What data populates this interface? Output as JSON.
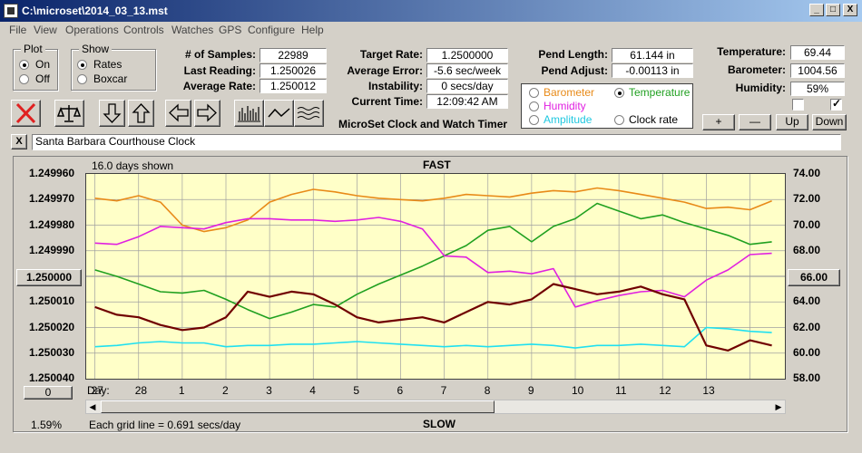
{
  "window": {
    "title": "C:\\microset\\2014_03_13.mst",
    "min_label": "_",
    "max_label": "□",
    "close_label": "X"
  },
  "menu": [
    "File",
    "View",
    "Operations",
    "Controls",
    "Watches",
    "GPS",
    "Configure",
    "Help"
  ],
  "plot_group": {
    "title": "Plot",
    "on_label": "On",
    "off_label": "Off",
    "selected": "On"
  },
  "show_group": {
    "title": "Show",
    "rates_label": "Rates",
    "boxcar_label": "Boxcar",
    "selected": "Rates"
  },
  "stats": {
    "samples_label": "# of Samples:",
    "samples": "22989",
    "last_reading_label": "Last Reading:",
    "last_reading": "1.250026",
    "average_rate_label": "Average Rate:",
    "average_rate": "1.250012",
    "target_rate_label": "Target Rate:",
    "target_rate": "1.2500000",
    "average_error_label": "Average Error:",
    "average_error": "-5.6 sec/week",
    "instability_label": "Instability:",
    "instability": "0 secs/day",
    "current_time_label": "Current Time:",
    "current_time": "12:09:42 AM",
    "pend_length_label": "Pend Length:",
    "pend_length": "61.144 in",
    "pend_adjust_label": "Pend Adjust:",
    "pend_adjust": "-0.00113 in",
    "temperature_label": "Temperature:",
    "temperature": "69.44",
    "barometer_label": "Barometer:",
    "barometer": "1004.56",
    "humidity_label": "Humidity:",
    "humidity": "59%"
  },
  "app_caption": "MicroSet Clock and Watch Timer",
  "sensor_select": {
    "barometer": "Barometer",
    "temperature": "Temperature",
    "humidity": "Humidity",
    "amplitude": "Amplitude",
    "clock_rate": "Clock rate",
    "selected": "Temperature"
  },
  "sensor_buttons": {
    "plus": "+",
    "minus": "—",
    "up": "Up",
    "down": "Down"
  },
  "checkboxes": [
    false,
    true
  ],
  "clock_name_close": "X",
  "clock_name": "Santa Barbara Courthouse Clock",
  "chart_header": {
    "days_shown": "16.0 days shown",
    "fast": "FAST",
    "slow": "SLOW",
    "grid_note": "Each grid line = 0.691 secs/day",
    "percent": "1.59%"
  },
  "left_center_button": "1.250000",
  "right_center_button": "66.00",
  "bottom_zero_button": "0",
  "colors": {
    "barometer": "#e88a18",
    "temperature": "#20a020",
    "humidity": "#e020e0",
    "amplitude": "#20e0f0",
    "rate": "#700000",
    "plot_bg": "#ffffc8",
    "grid": "#a0a0a0",
    "close_red": "#e02020"
  },
  "chart_data": {
    "type": "line",
    "title": "",
    "xlabel": "Day:",
    "x_ticks": [
      "27",
      "28",
      "1",
      "2",
      "3",
      "4",
      "5",
      "6",
      "7",
      "8",
      "9",
      "10",
      "11",
      "12",
      "13"
    ],
    "y_left_ticks": [
      "1.249960",
      "1.249970",
      "1.249980",
      "1.249990",
      "1.250000",
      "1.250010",
      "1.250020",
      "1.250030",
      "1.250040"
    ],
    "y_right_ticks": [
      "74.00",
      "72.00",
      "70.00",
      "68.00",
      "66.00",
      "64.00",
      "62.00",
      "60.00",
      "58.00"
    ],
    "ylim_left": [
      1.25004,
      1.24996
    ],
    "ylim_right": [
      58,
      74
    ],
    "x_range": [
      -0.2,
      15.8
    ],
    "grid": true,
    "series": [
      {
        "name": "Barometer",
        "color": "#e88a18",
        "axis": "right",
        "x": [
          0,
          0.5,
          1,
          1.5,
          2,
          2.5,
          3,
          3.5,
          4,
          4.5,
          5,
          5.5,
          6,
          6.5,
          7,
          7.5,
          8,
          8.5,
          9,
          9.5,
          10,
          10.5,
          11,
          11.5,
          12,
          12.5,
          13,
          13.5,
          14,
          14.5,
          15,
          15.5
        ],
        "y": [
          72.1,
          71.9,
          72.3,
          71.8,
          70.0,
          69.5,
          69.8,
          70.4,
          71.8,
          72.4,
          72.8,
          72.6,
          72.3,
          72.1,
          72.0,
          71.9,
          72.1,
          72.4,
          72.3,
          72.2,
          72.5,
          72.7,
          72.6,
          72.9,
          72.7,
          72.4,
          72.1,
          71.8,
          71.3,
          71.4,
          71.2,
          71.9
        ]
      },
      {
        "name": "Temperature",
        "color": "#20a020",
        "axis": "right",
        "x": [
          0,
          0.5,
          1,
          1.5,
          2,
          2.5,
          3,
          3.5,
          4,
          4.5,
          5,
          5.5,
          6,
          6.5,
          7,
          7.5,
          8,
          8.5,
          9,
          9.5,
          10,
          10.5,
          11,
          11.5,
          12,
          12.5,
          13,
          13.5,
          14,
          14.5,
          15,
          15.5
        ],
        "y": [
          66.5,
          66.0,
          65.4,
          64.8,
          64.7,
          64.9,
          64.2,
          63.4,
          62.7,
          63.2,
          63.8,
          63.6,
          64.6,
          65.4,
          66.1,
          66.8,
          67.6,
          68.4,
          69.6,
          69.9,
          68.7,
          69.9,
          70.5,
          71.7,
          71.1,
          70.5,
          70.8,
          70.2,
          69.7,
          69.2,
          68.5,
          68.7
        ]
      },
      {
        "name": "Humidity",
        "color": "#e020e0",
        "axis": "right",
        "x": [
          0,
          0.5,
          1,
          1.5,
          2,
          2.5,
          3,
          3.5,
          4,
          4.5,
          5,
          5.5,
          6,
          6.5,
          7,
          7.5,
          8,
          8.5,
          9,
          9.5,
          10,
          10.5,
          11,
          11.5,
          12,
          12.5,
          13,
          13.5,
          14,
          14.5,
          15,
          15.5
        ],
        "y": [
          68.6,
          68.5,
          69.1,
          69.9,
          69.8,
          69.7,
          70.2,
          70.5,
          70.5,
          70.4,
          70.4,
          70.3,
          70.4,
          70.6,
          70.3,
          69.7,
          67.6,
          67.5,
          66.3,
          66.4,
          66.2,
          66.6,
          63.6,
          64.1,
          64.5,
          64.8,
          64.9,
          64.4,
          65.7,
          66.5,
          67.7,
          67.8
        ]
      },
      {
        "name": "Amplitude",
        "color": "#20e0f0",
        "axis": "right",
        "x": [
          0,
          0.5,
          1,
          1.5,
          2,
          2.5,
          3,
          3.5,
          4,
          4.5,
          5,
          5.5,
          6,
          6.5,
          7,
          7.5,
          8,
          8.5,
          9,
          9.5,
          10,
          10.5,
          11,
          11.5,
          12,
          12.5,
          13,
          13.5,
          14,
          14.5,
          15,
          15.5
        ],
        "y": [
          60.5,
          60.6,
          60.8,
          60.9,
          60.8,
          60.8,
          60.5,
          60.6,
          60.6,
          60.7,
          60.7,
          60.8,
          60.9,
          60.8,
          60.7,
          60.6,
          60.5,
          60.6,
          60.5,
          60.6,
          60.7,
          60.6,
          60.4,
          60.6,
          60.6,
          60.7,
          60.6,
          60.5,
          62.0,
          61.9,
          61.7,
          61.6
        ]
      },
      {
        "name": "Clock rate",
        "color": "#700000",
        "axis": "left",
        "x": [
          0,
          0.5,
          1,
          1.5,
          2,
          2.5,
          3,
          3.5,
          4,
          4.5,
          5,
          5.5,
          6,
          6.5,
          7,
          7.5,
          8,
          8.5,
          9,
          9.5,
          10,
          10.5,
          11,
          11.5,
          12,
          12.5,
          13,
          13.5,
          14,
          14.5,
          15,
          15.5
        ],
        "y": [
          1.250012,
          1.250015,
          1.250016,
          1.250019,
          1.250021,
          1.25002,
          1.250016,
          1.250006,
          1.250008,
          1.250006,
          1.250007,
          1.250011,
          1.250016,
          1.250018,
          1.250017,
          1.250016,
          1.250018,
          1.250014,
          1.25001,
          1.250011,
          1.250009,
          1.250003,
          1.250005,
          1.250007,
          1.250006,
          1.250004,
          1.250007,
          1.250009,
          1.250027,
          1.250029,
          1.250025,
          1.250027
        ]
      }
    ]
  }
}
